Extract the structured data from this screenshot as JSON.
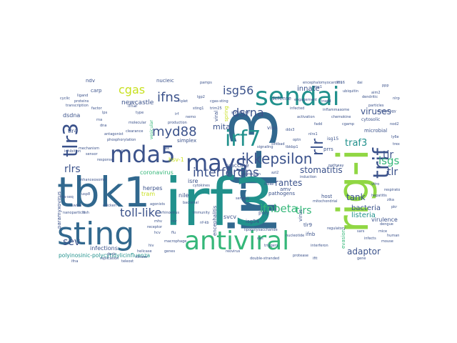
{
  "palette": {
    "purple": "#440154",
    "indigo": "#3b528b",
    "blue": "#31688e",
    "teal": "#21918c",
    "green": "#35b779",
    "lime": "#90d743",
    "yellow": "#c8e020"
  },
  "words": [
    {
      "text": "irf-3",
      "color": "#31688e"
    },
    {
      "text": "irf3",
      "color": "#21918c"
    },
    {
      "text": "tbk1",
      "color": "#31688e"
    },
    {
      "text": "rig-i",
      "color": "#90d743"
    },
    {
      "text": "sting",
      "color": "#31688e"
    },
    {
      "text": "sendai",
      "color": "#21918c"
    },
    {
      "text": "antiviral",
      "color": "#35b779"
    },
    {
      "text": "mavs",
      "color": "#3b528b"
    },
    {
      "text": "irf7",
      "color": "#21918c"
    },
    {
      "text": "mda5",
      "color": "#3b528b"
    },
    {
      "text": "trif",
      "color": "#3b528b"
    },
    {
      "text": "tlr3",
      "color": "#3b528b"
    },
    {
      "text": "ikkepsilon",
      "color": "#3b528b"
    },
    {
      "text": "rlr",
      "color": "#3b528b"
    },
    {
      "text": "interferons",
      "color": "#3b528b"
    },
    {
      "text": "myd88",
      "color": "#3b528b"
    },
    {
      "text": "isg56",
      "color": "#3b528b"
    },
    {
      "text": "ifns",
      "color": "#3b528b"
    },
    {
      "text": "cgas",
      "color": "#c8e020"
    },
    {
      "text": "dsrna",
      "color": "#3b528b"
    },
    {
      "text": "toll-like",
      "color": "#3b528b"
    },
    {
      "text": "ifnbeta",
      "color": "#35b779"
    },
    {
      "text": "tlrs",
      "color": "#35b779"
    },
    {
      "text": "isgs",
      "color": "#35b779"
    },
    {
      "text": "tir",
      "color": "#3b528b"
    },
    {
      "text": "tlr",
      "color": "#3b528b"
    },
    {
      "text": "traf3",
      "color": "#21918c"
    },
    {
      "text": "rlrs",
      "color": "#3b528b"
    },
    {
      "text": "sev",
      "color": "#3b528b"
    },
    {
      "text": "stomatitis",
      "color": "#3b528b"
    },
    {
      "text": "rantes",
      "color": "#3b528b"
    },
    {
      "text": "viruses",
      "color": "#3b528b"
    },
    {
      "text": "mita",
      "color": "#3b528b"
    },
    {
      "text": "adaptor",
      "color": "#3b528b"
    },
    {
      "text": "tank",
      "color": "#3b528b"
    },
    {
      "text": "bacteria",
      "color": "#3b528b"
    },
    {
      "text": "listeria",
      "color": "#21918c"
    },
    {
      "text": "innate",
      "color": "#3b528b"
    },
    {
      "text": "newcastle",
      "color": "#3b528b"
    },
    {
      "text": "dsdna",
      "color": "#3b528b"
    },
    {
      "text": "tlr4",
      "color": "#3b528b"
    },
    {
      "text": "tram",
      "color": "#c8e020"
    },
    {
      "text": "herpes",
      "color": "#3b528b"
    },
    {
      "text": "coronavirus",
      "color": "#35b779"
    },
    {
      "text": "infections",
      "color": "#3b528b"
    },
    {
      "text": "polyinosinic-polycytidylicinfluenza",
      "color": "#21918c"
    },
    {
      "text": "paramyxovirus",
      "color": "#3b528b"
    },
    {
      "text": "isre",
      "color": "#3b528b"
    },
    {
      "text": "hsv-1",
      "color": "#c8e020"
    },
    {
      "text": "nile",
      "color": "#3b528b"
    },
    {
      "text": "vaccine",
      "color": "#3b528b"
    },
    {
      "text": "svcv",
      "color": "#3b528b"
    },
    {
      "text": "isg54",
      "color": "#3b528b"
    },
    {
      "text": "poly",
      "color": "#3b528b"
    },
    {
      "text": "ifnb",
      "color": "#3b528b"
    },
    {
      "text": "tlr9",
      "color": "#3b528b"
    },
    {
      "text": "encephalitis",
      "color": "#3b528b"
    },
    {
      "text": "pathogens",
      "color": "#3b528b"
    },
    {
      "text": "isg15",
      "color": "#3b528b"
    },
    {
      "text": "prrs",
      "color": "#3b528b"
    },
    {
      "text": "virulence",
      "color": "#3b528b"
    },
    {
      "text": "microbial",
      "color": "#3b528b"
    },
    {
      "text": "host",
      "color": "#3b528b"
    },
    {
      "text": "defense",
      "color": "#3b528b"
    },
    {
      "text": "spring",
      "color": "#c8e020"
    },
    {
      "text": "viral",
      "color": "#3b528b"
    },
    {
      "text": "nucleic",
      "color": "#3b528b"
    },
    {
      "text": "carp",
      "color": "#3b528b"
    },
    {
      "text": "ndv",
      "color": "#3b528b"
    },
    {
      "text": "visa",
      "color": "#3b528b"
    },
    {
      "text": "ifnar",
      "color": "#3b528b"
    },
    {
      "text": "simplex",
      "color": "#3b528b"
    },
    {
      "text": "vesicular",
      "color": "#35b779"
    },
    {
      "text": "cytosolic",
      "color": "#3b528b"
    },
    {
      "text": "virus",
      "color": "#3b528b"
    },
    {
      "text": "evasion",
      "color": "#35b779"
    },
    {
      "text": "amv",
      "color": "#3b528b"
    },
    {
      "text": "bacterial",
      "color": "#3b528b"
    },
    {
      "text": "ikk",
      "color": "#3b528b"
    },
    {
      "text": "irf",
      "color": "#3b528b"
    },
    {
      "text": "production",
      "color": "#3b528b"
    },
    {
      "text": "immunity",
      "color": "#3b528b"
    },
    {
      "text": "mitochondrial",
      "color": "#3b528b"
    },
    {
      "text": "regulatory",
      "color": "#3b528b"
    },
    {
      "text": "interferon",
      "color": "#3b528b"
    },
    {
      "text": "double-stranded",
      "color": "#3b528b"
    },
    {
      "text": "reovirus",
      "color": "#3b528b"
    },
    {
      "text": "lipopolysaccharide",
      "color": "#3b528b"
    },
    {
      "text": "engagement",
      "color": "#3b528b"
    },
    {
      "text": "inflammasome",
      "color": "#3b528b"
    },
    {
      "text": "encephalomyocarditis",
      "color": "#3b528b"
    },
    {
      "text": "particles",
      "color": "#3b528b"
    },
    {
      "text": "macrophage",
      "color": "#3b528b"
    },
    {
      "text": "stimulator",
      "color": "#3b528b"
    },
    {
      "text": "chemokine",
      "color": "#3b528b"
    },
    {
      "text": "ppp",
      "color": "#3b528b"
    },
    {
      "text": "ubiquitin",
      "color": "#3b528b"
    },
    {
      "text": "signaling",
      "color": "#3b528b"
    },
    {
      "text": "cgamp",
      "color": "#3b528b"
    },
    {
      "text": "dendritic",
      "color": "#3b528b"
    },
    {
      "text": "autophagy",
      "color": "#3b528b"
    },
    {
      "text": "cytokines",
      "color": "#3b528b"
    },
    {
      "text": "helicase",
      "color": "#3b528b"
    },
    {
      "text": "receptor",
      "color": "#3b528b"
    },
    {
      "text": "replication",
      "color": "#3b528b"
    },
    {
      "text": "kinase",
      "color": "#3b528b"
    },
    {
      "text": "nf-kb",
      "color": "#3b528b"
    },
    {
      "text": "pamps",
      "color": "#3b528b"
    },
    {
      "text": "lps",
      "color": "#3b528b"
    },
    {
      "text": "rna",
      "color": "#3b528b"
    },
    {
      "text": "dna",
      "color": "#3b528b"
    },
    {
      "text": "cells",
      "color": "#3b528b"
    },
    {
      "text": "response",
      "color": "#3b528b"
    },
    {
      "text": "infected",
      "color": "#3b528b"
    },
    {
      "text": "activation",
      "color": "#3b528b"
    },
    {
      "text": "expression",
      "color": "#3b528b"
    },
    {
      "text": "pathway",
      "color": "#3b528b"
    },
    {
      "text": "induction",
      "color": "#3b528b"
    },
    {
      "text": "sensing",
      "color": "#3b528b"
    },
    {
      "text": "triggers",
      "color": "#3b528b"
    },
    {
      "text": "nucleotide",
      "color": "#3b528b"
    },
    {
      "text": "protease",
      "color": "#3b528b"
    },
    {
      "text": "ifit",
      "color": "#3b528b"
    },
    {
      "text": "oas",
      "color": "#3b528b"
    },
    {
      "text": "pkr",
      "color": "#3b528b"
    },
    {
      "text": "mouse",
      "color": "#3b528b"
    },
    {
      "text": "vitro",
      "color": "#3b528b"
    },
    {
      "text": "respiratory",
      "color": "#3b528b"
    },
    {
      "text": "hepatitis",
      "color": "#3b528b"
    },
    {
      "text": "zika",
      "color": "#3b528b"
    },
    {
      "text": "dengue",
      "color": "#3b528b"
    },
    {
      "text": "mice",
      "color": "#3b528b"
    },
    {
      "text": "human",
      "color": "#3b528b"
    },
    {
      "text": "cyclic",
      "color": "#3b528b"
    },
    {
      "text": "proteins",
      "color": "#3b528b"
    },
    {
      "text": "ligand",
      "color": "#3b528b"
    },
    {
      "text": "transcription",
      "color": "#3b528b"
    },
    {
      "text": "factor",
      "color": "#3b528b"
    },
    {
      "text": "sensor",
      "color": "#3b528b"
    },
    {
      "text": "mechanism",
      "color": "#3b528b"
    },
    {
      "text": "inhibition",
      "color": "#3b528b"
    },
    {
      "text": "antagonist",
      "color": "#3b528b"
    },
    {
      "text": "phosphorylation",
      "color": "#3b528b"
    },
    {
      "text": "clearance",
      "color": "#3b528b"
    },
    {
      "text": "molecular",
      "color": "#3b528b"
    },
    {
      "text": "type",
      "color": "#3b528b"
    },
    {
      "text": "genes",
      "color": "#3b528b"
    },
    {
      "text": "gene",
      "color": "#3b528b"
    },
    {
      "text": "cgas-sting",
      "color": "#3b528b"
    },
    {
      "text": "trim25",
      "color": "#3b528b"
    },
    {
      "text": "riplet",
      "color": "#3b528b"
    },
    {
      "text": "sting1",
      "color": "#3b528b"
    },
    {
      "text": "lgp2",
      "color": "#3b528b"
    },
    {
      "text": "nemo",
      "color": "#3b528b"
    },
    {
      "text": "tradd",
      "color": "#3b528b"
    },
    {
      "text": "fadd",
      "color": "#3b528b"
    },
    {
      "text": "ddx3",
      "color": "#3b528b"
    },
    {
      "text": "nlrx1",
      "color": "#3b528b"
    },
    {
      "text": "optn",
      "color": "#3b528b"
    },
    {
      "text": "sintbad",
      "color": "#3b528b"
    },
    {
      "text": "tbkbp1",
      "color": "#3b528b"
    },
    {
      "text": "azi2",
      "color": "#3b528b"
    },
    {
      "text": "ikbke",
      "color": "#3b528b"
    },
    {
      "text": "mx1",
      "color": "#3b528b"
    },
    {
      "text": "ifi16",
      "color": "#3b528b"
    },
    {
      "text": "dai",
      "color": "#3b528b"
    },
    {
      "text": "aim2",
      "color": "#3b528b"
    },
    {
      "text": "nlrp3",
      "color": "#3b528b"
    },
    {
      "text": "nod2",
      "color": "#3b528b"
    },
    {
      "text": "ly6e",
      "color": "#3b528b"
    },
    {
      "text": "trex1",
      "color": "#3b528b"
    },
    {
      "text": "enhanceosome",
      "color": "#3b528b"
    },
    {
      "text": "usp8",
      "color": "#3b528b"
    },
    {
      "text": "swine",
      "color": "#3b528b"
    },
    {
      "text": "fish",
      "color": "#3b528b"
    },
    {
      "text": "chicken",
      "color": "#3b528b"
    },
    {
      "text": "duck",
      "color": "#3b528b"
    },
    {
      "text": "teleost",
      "color": "#3b528b"
    },
    {
      "text": "ifna",
      "color": "#3b528b"
    },
    {
      "text": "rna-seq",
      "color": "#3b528b"
    },
    {
      "text": "nanoparticle",
      "color": "#3b528b"
    },
    {
      "text": "agonists",
      "color": "#3b528b"
    },
    {
      "text": "rhinovirus",
      "color": "#3b528b"
    },
    {
      "text": "rsv",
      "color": "#3b528b"
    },
    {
      "text": "mhv",
      "color": "#3b528b"
    },
    {
      "text": "hcv",
      "color": "#3b528b"
    },
    {
      "text": "hiv",
      "color": "#3b528b"
    },
    {
      "text": "flu",
      "color": "#3b528b"
    },
    {
      "text": "sars",
      "color": "#3b528b"
    },
    {
      "text": "infects",
      "color": "#3b528b"
    }
  ]
}
